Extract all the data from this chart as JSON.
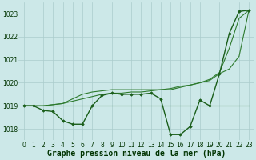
{
  "title": "Graphe pression niveau de la mer (hPa)",
  "x_values": [
    0,
    1,
    2,
    3,
    4,
    5,
    6,
    7,
    8,
    9,
    10,
    11,
    12,
    13,
    14,
    15,
    16,
    17,
    18,
    19,
    20,
    21,
    22,
    23
  ],
  "y_main": [
    1019.0,
    1019.0,
    1018.8,
    1018.75,
    1018.35,
    1018.2,
    1018.2,
    1019.0,
    1019.45,
    1019.55,
    1019.5,
    1019.5,
    1019.5,
    1019.55,
    1019.3,
    1017.75,
    1017.75,
    1018.1,
    1019.25,
    1019.0,
    1020.4,
    1022.15,
    1023.1,
    1023.15
  ],
  "y_flat": [
    1019.0,
    1019.0,
    1019.0,
    1019.0,
    1019.0,
    1019.0,
    1019.0,
    1019.0,
    1019.0,
    1019.0,
    1019.0,
    1019.0,
    1019.0,
    1019.0,
    1019.0,
    1019.0,
    1019.0,
    1019.0,
    1019.0,
    1019.0,
    1019.0,
    1019.0,
    1019.0,
    1019.0
  ],
  "y_rise_slow": [
    1019.0,
    1019.0,
    1019.0,
    1019.05,
    1019.1,
    1019.2,
    1019.3,
    1019.4,
    1019.5,
    1019.55,
    1019.55,
    1019.6,
    1019.6,
    1019.65,
    1019.7,
    1019.75,
    1019.85,
    1019.9,
    1020.0,
    1020.1,
    1020.4,
    1020.6,
    1021.15,
    1023.15
  ],
  "y_rise_fast": [
    1019.0,
    1019.0,
    1019.0,
    1019.05,
    1019.1,
    1019.3,
    1019.5,
    1019.6,
    1019.65,
    1019.7,
    1019.7,
    1019.7,
    1019.7,
    1019.7,
    1019.7,
    1019.7,
    1019.8,
    1019.9,
    1020.0,
    1020.15,
    1020.45,
    1021.5,
    1022.8,
    1023.15
  ],
  "ylim": [
    1017.5,
    1023.5
  ],
  "xlim": [
    -0.5,
    23.5
  ],
  "yticks": [
    1018,
    1019,
    1020,
    1021,
    1022,
    1023
  ],
  "xticks": [
    0,
    1,
    2,
    3,
    4,
    5,
    6,
    7,
    8,
    9,
    10,
    11,
    12,
    13,
    14,
    15,
    16,
    17,
    18,
    19,
    20,
    21,
    22,
    23
  ],
  "bg_color": "#cce8e8",
  "grid_color": "#aacccc",
  "dark_green": "#1a5e1a",
  "mid_green": "#2d7a2d",
  "title_fontsize": 7.0,
  "tick_fontsize": 5.5
}
